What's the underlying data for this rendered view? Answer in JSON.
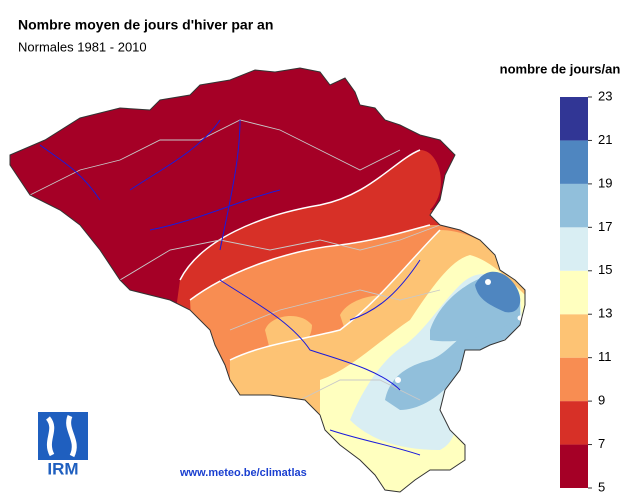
{
  "header": {
    "title": "Nombre moyen de jours d'hiver par an",
    "subtitle": "Normales 1981 - 2010"
  },
  "legend": {
    "title": "nombre de jours/an",
    "ticks": [
      5,
      7,
      9,
      11,
      13,
      15,
      17,
      19,
      21,
      23
    ],
    "colors": [
      "#a50026",
      "#d73027",
      "#f88d52",
      "#fdc374",
      "#ffffbf",
      "#d9eef3",
      "#91bfdb",
      "#4f86c0",
      "#313695"
    ]
  },
  "source": "www.meteo.be/climatlas",
  "logo": "IRM"
}
